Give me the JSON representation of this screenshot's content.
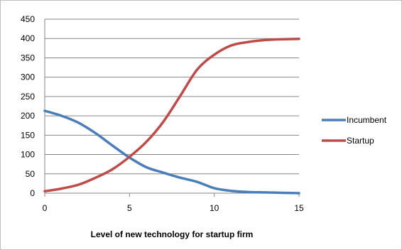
{
  "chart_data": {
    "type": "line",
    "title": "",
    "xlabel": "Level of new technology for startup firm",
    "ylabel": "",
    "xlim": [
      0,
      15
    ],
    "ylim": [
      0,
      450
    ],
    "x_ticks": [
      0,
      5,
      10,
      15
    ],
    "y_ticks": [
      0,
      50,
      100,
      150,
      200,
      250,
      300,
      350,
      400,
      450
    ],
    "grid": "horizontal",
    "legend_position": "right",
    "x": [
      0,
      1,
      2,
      3,
      4,
      5,
      6,
      7,
      8,
      9,
      10,
      11,
      12,
      13,
      14,
      15
    ],
    "series": [
      {
        "name": "Incumbent",
        "color": "#4a7ebb",
        "values": [
          213,
          200,
          182,
          155,
          123,
          92,
          67,
          53,
          40,
          29,
          13,
          6,
          3,
          2,
          1,
          0
        ]
      },
      {
        "name": "Startup",
        "color": "#be4b48",
        "values": [
          5,
          12,
          22,
          40,
          62,
          94,
          133,
          185,
          252,
          320,
          358,
          382,
          391,
          396,
          398,
          399
        ]
      }
    ]
  }
}
